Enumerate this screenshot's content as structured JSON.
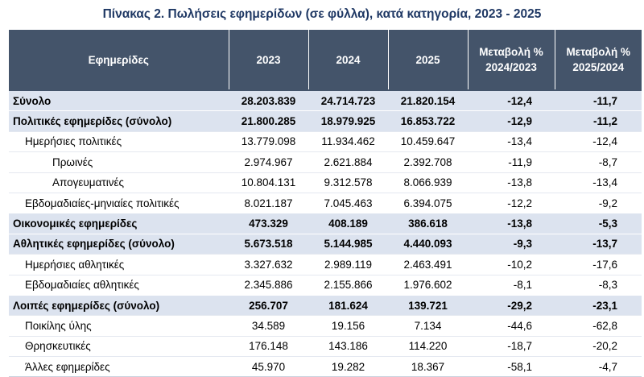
{
  "title": "Πίνακας 2. Πωλήσεις εφημερίδων (σε φύλλα), κατά κατηγορία, 2023 - 2025",
  "table": {
    "headers": [
      {
        "l1": "Εφημερίδες",
        "l2": ""
      },
      {
        "l1": "2023",
        "l2": ""
      },
      {
        "l1": "2024",
        "l2": ""
      },
      {
        "l1": "2025",
        "l2": ""
      },
      {
        "l1": "Μεταβολή %",
        "l2": "2024/2023"
      },
      {
        "l1": "Μεταβολή %",
        "l2": "2025/2024"
      }
    ],
    "rows": [
      {
        "level": 0,
        "label": "Σύνολο",
        "v2023": "28.203.839",
        "v2024": "24.714.723",
        "v2025": "21.820.154",
        "ch1": "-12,4",
        "ch2": "-11,7"
      },
      {
        "level": 0,
        "label": "Πολιτικές εφημερίδες (σύνολο)",
        "v2023": "21.800.285",
        "v2024": "18.979.925",
        "v2025": "16.853.722",
        "ch1": "-12,9",
        "ch2": "-11,2"
      },
      {
        "level": 1,
        "label": "Ημερήσιες πολιτικές",
        "v2023": "13.779.098",
        "v2024": "11.934.462",
        "v2025": "10.459.647",
        "ch1": "-13,4",
        "ch2": "-12,4"
      },
      {
        "level": 2,
        "label": "Πρωινές",
        "v2023": "2.974.967",
        "v2024": "2.621.884",
        "v2025": "2.392.708",
        "ch1": "-11,9",
        "ch2": "-8,7"
      },
      {
        "level": 2,
        "label": "Απογευματινές",
        "v2023": "10.804.131",
        "v2024": "9.312.578",
        "v2025": "8.066.939",
        "ch1": "-13,8",
        "ch2": "-13,4"
      },
      {
        "level": 1,
        "label": "Εβδομαδιαίες-μηνιαίες πολιτικές",
        "v2023": "8.021.187",
        "v2024": "7.045.463",
        "v2025": "6.394.075",
        "ch1": "-12,2",
        "ch2": "-9,2"
      },
      {
        "level": 0,
        "label": "Οικονομικές εφημερίδες",
        "v2023": "473.329",
        "v2024": "408.189",
        "v2025": "386.618",
        "ch1": "-13,8",
        "ch2": "-5,3"
      },
      {
        "level": 0,
        "label": "Αθλητικές εφημερίδες (σύνολο)",
        "v2023": "5.673.518",
        "v2024": "5.144.985",
        "v2025": "4.440.093",
        "ch1": "-9,3",
        "ch2": "-13,7"
      },
      {
        "level": 1,
        "label": "Ημερήσιες αθλητικές",
        "v2023": "3.327.632",
        "v2024": "2.989.119",
        "v2025": "2.463.491",
        "ch1": "-10,2",
        "ch2": "-17,6"
      },
      {
        "level": 1,
        "label": "Εβδομαδιαίες αθλητικές",
        "v2023": "2.345.886",
        "v2024": "2.155.866",
        "v2025": "1.976.602",
        "ch1": "-8,1",
        "ch2": "-8,3"
      },
      {
        "level": 0,
        "label": "Λοιπές εφημερίδες (σύνολο)",
        "v2023": "256.707",
        "v2024": "181.624",
        "v2025": "139.721",
        "ch1": "-29,2",
        "ch2": "-23,1"
      },
      {
        "level": 1,
        "label": "Ποικίλης ύλης",
        "v2023": "34.589",
        "v2024": "19.156",
        "v2025": "7.134",
        "ch1": "-44,6",
        "ch2": "-62,8"
      },
      {
        "level": 1,
        "label": "Θρησκευτικές",
        "v2023": "176.148",
        "v2024": "143.186",
        "v2025": "114.220",
        "ch1": "-18,7",
        "ch2": "-20,2"
      },
      {
        "level": 1,
        "label": "Άλλες εφημερίδες",
        "v2023": "45.970",
        "v2024": "19.282",
        "v2025": "18.367",
        "ch1": "-58,1",
        "ch2": "-4,7"
      }
    ]
  }
}
